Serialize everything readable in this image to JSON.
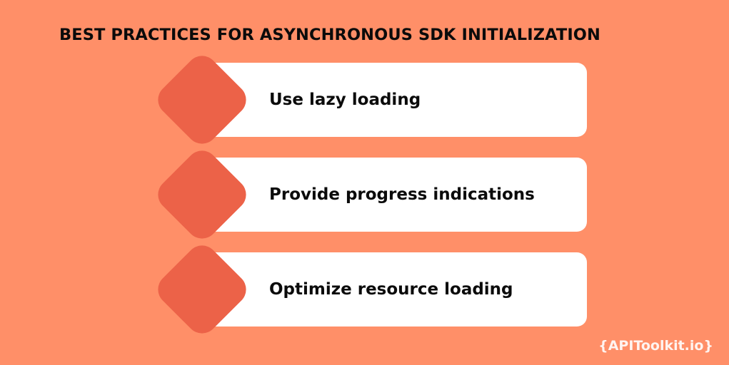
{
  "title": "BEST PRACTICES FOR ASYNCHRONOUS SDK INITIALIZATION",
  "steps": [
    {
      "label": "Use lazy loading"
    },
    {
      "label": "Provide progress indications"
    },
    {
      "label": "Optimize resource loading"
    }
  ],
  "watermark": "{APIToolkit.io}",
  "colors": {
    "background": "#FF8F68",
    "diamond": "#EC6248",
    "card": "#FFFFFF",
    "text": "#0B0B0B"
  }
}
